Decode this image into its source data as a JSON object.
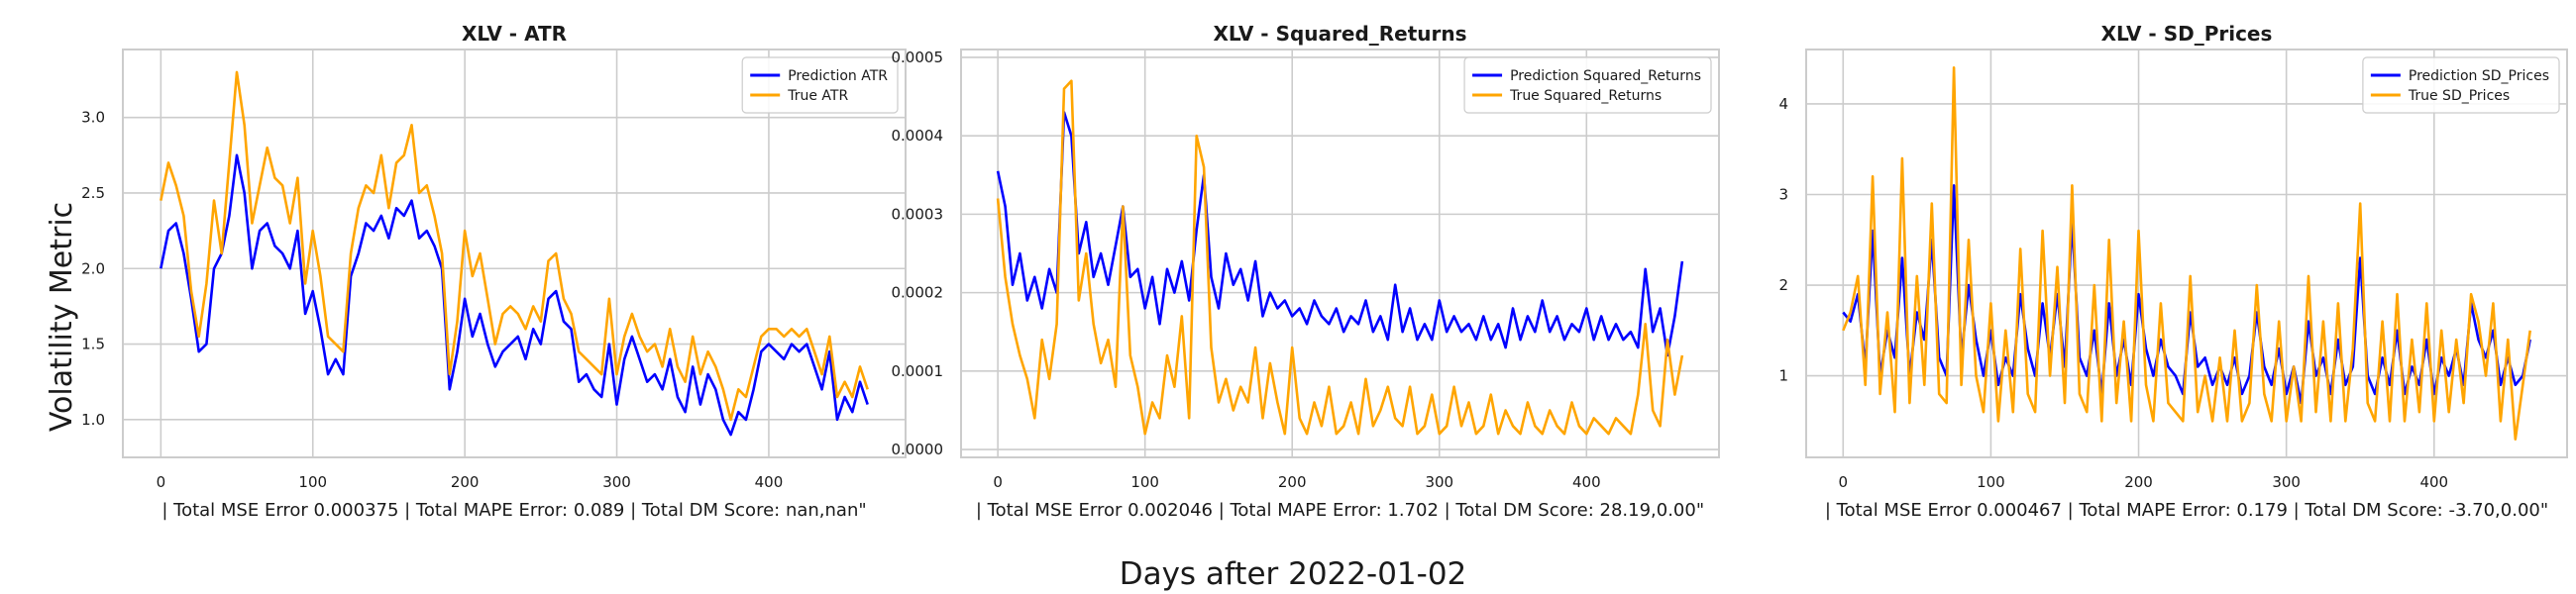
{
  "figure": {
    "ylabel": "Volatility Metric",
    "xlabel": "Days after 2022-01-02"
  },
  "colors": {
    "prediction": "#0000ff",
    "true": "#ffa500",
    "grid": "#cccccc",
    "frame": "#cccccc"
  },
  "chart_data": [
    {
      "type": "line",
      "title": "XLV - ATR",
      "caption": "| Total MSE Error 0.000375 | Total MAPE Error: 0.089 | Total DM Score: nan,nan\"",
      "xlim": [
        -25,
        490
      ],
      "ylim": [
        0.75,
        3.45
      ],
      "xticks": [
        0,
        100,
        200,
        300,
        400
      ],
      "yticks": [
        1.0,
        1.5,
        2.0,
        2.5,
        3.0
      ],
      "ytick_labels": [
        "1.0",
        "1.5",
        "2.0",
        "2.5",
        "3.0"
      ],
      "grid": true,
      "legend_position": "top-right",
      "x": [
        0,
        5,
        10,
        15,
        20,
        25,
        30,
        35,
        40,
        45,
        50,
        55,
        60,
        65,
        70,
        75,
        80,
        85,
        90,
        95,
        100,
        105,
        110,
        115,
        120,
        125,
        130,
        135,
        140,
        145,
        150,
        155,
        160,
        165,
        170,
        175,
        180,
        185,
        190,
        195,
        200,
        205,
        210,
        215,
        220,
        225,
        230,
        235,
        240,
        245,
        250,
        255,
        260,
        265,
        270,
        275,
        280,
        285,
        290,
        295,
        300,
        305,
        310,
        315,
        320,
        325,
        330,
        335,
        340,
        345,
        350,
        355,
        360,
        365,
        370,
        375,
        380,
        385,
        390,
        395,
        400,
        405,
        410,
        415,
        420,
        425,
        430,
        435,
        440,
        445,
        450,
        455,
        460,
        465
      ],
      "series": [
        {
          "name": "Prediction ATR",
          "values": [
            2.0,
            2.25,
            2.3,
            2.1,
            1.8,
            1.45,
            1.5,
            2.0,
            2.1,
            2.35,
            2.75,
            2.5,
            2.0,
            2.25,
            2.3,
            2.15,
            2.1,
            2.0,
            2.25,
            1.7,
            1.85,
            1.6,
            1.3,
            1.4,
            1.3,
            1.95,
            2.1,
            2.3,
            2.25,
            2.35,
            2.2,
            2.4,
            2.35,
            2.45,
            2.2,
            2.25,
            2.15,
            2.0,
            1.2,
            1.45,
            1.8,
            1.55,
            1.7,
            1.5,
            1.35,
            1.45,
            1.5,
            1.55,
            1.4,
            1.6,
            1.5,
            1.8,
            1.85,
            1.65,
            1.6,
            1.25,
            1.3,
            1.2,
            1.15,
            1.5,
            1.1,
            1.4,
            1.55,
            1.4,
            1.25,
            1.3,
            1.2,
            1.4,
            1.15,
            1.05,
            1.35,
            1.1,
            1.3,
            1.2,
            1.0,
            0.9,
            1.05,
            1.0,
            1.2,
            1.45,
            1.5,
            1.45,
            1.4,
            1.5,
            1.45,
            1.5,
            1.35,
            1.2,
            1.45,
            1.0,
            1.15,
            1.05,
            1.25,
            1.1
          ]
        },
        {
          "name": "True ATR",
          "values": [
            2.45,
            2.7,
            2.55,
            2.35,
            1.85,
            1.55,
            1.9,
            2.45,
            2.1,
            2.7,
            3.3,
            2.95,
            2.3,
            2.55,
            2.8,
            2.6,
            2.55,
            2.3,
            2.6,
            1.9,
            2.25,
            1.95,
            1.55,
            1.5,
            1.45,
            2.1,
            2.4,
            2.55,
            2.5,
            2.75,
            2.4,
            2.7,
            2.75,
            2.95,
            2.5,
            2.55,
            2.35,
            2.1,
            1.3,
            1.65,
            2.25,
            1.95,
            2.1,
            1.8,
            1.5,
            1.7,
            1.75,
            1.7,
            1.6,
            1.75,
            1.65,
            2.05,
            2.1,
            1.8,
            1.7,
            1.45,
            1.4,
            1.35,
            1.3,
            1.8,
            1.3,
            1.55,
            1.7,
            1.55,
            1.45,
            1.5,
            1.35,
            1.6,
            1.35,
            1.25,
            1.55,
            1.3,
            1.45,
            1.35,
            1.2,
            1.0,
            1.2,
            1.15,
            1.35,
            1.55,
            1.6,
            1.6,
            1.55,
            1.6,
            1.55,
            1.6,
            1.45,
            1.3,
            1.55,
            1.15,
            1.25,
            1.15,
            1.35,
            1.2
          ]
        }
      ]
    },
    {
      "type": "line",
      "title": "XLV - Squared_Returns",
      "caption": "| Total MSE Error 0.002046 | Total MAPE Error: 1.702 | Total DM Score: 28.19,0.00\"",
      "xlim": [
        -25,
        490
      ],
      "ylim": [
        -1e-05,
        0.00051
      ],
      "xticks": [
        0,
        100,
        200,
        300,
        400
      ],
      "yticks": [
        0,
        0.0001,
        0.0002,
        0.0003,
        0.0004,
        0.0005
      ],
      "ytick_labels": [
        "0.0000",
        "0.0001",
        "0.0002",
        "0.0003",
        "0.0004",
        "0.0005"
      ],
      "grid": true,
      "legend_position": "top-right",
      "x": [
        0,
        5,
        10,
        15,
        20,
        25,
        30,
        35,
        40,
        45,
        50,
        55,
        60,
        65,
        70,
        75,
        80,
        85,
        90,
        95,
        100,
        105,
        110,
        115,
        120,
        125,
        130,
        135,
        140,
        145,
        150,
        155,
        160,
        165,
        170,
        175,
        180,
        185,
        190,
        195,
        200,
        205,
        210,
        215,
        220,
        225,
        230,
        235,
        240,
        245,
        250,
        255,
        260,
        265,
        270,
        275,
        280,
        285,
        290,
        295,
        300,
        305,
        310,
        315,
        320,
        325,
        330,
        335,
        340,
        345,
        350,
        355,
        360,
        365,
        370,
        375,
        380,
        385,
        390,
        395,
        400,
        405,
        410,
        415,
        420,
        425,
        430,
        435,
        440,
        445,
        450,
        455,
        460,
        465
      ],
      "series": [
        {
          "name": "Prediction Squared_Returns",
          "values": [
            0.000355,
            0.00031,
            0.00021,
            0.00025,
            0.00019,
            0.00022,
            0.00018,
            0.00023,
            0.0002,
            0.00043,
            0.0004,
            0.00025,
            0.00029,
            0.00022,
            0.00025,
            0.00021,
            0.00026,
            0.00031,
            0.00022,
            0.00023,
            0.00018,
            0.00022,
            0.00016,
            0.00023,
            0.0002,
            0.00024,
            0.00019,
            0.00028,
            0.00035,
            0.00022,
            0.00018,
            0.00025,
            0.00021,
            0.00023,
            0.00019,
            0.00024,
            0.00017,
            0.0002,
            0.00018,
            0.00019,
            0.00017,
            0.00018,
            0.00016,
            0.00019,
            0.00017,
            0.00016,
            0.00018,
            0.00015,
            0.00017,
            0.00016,
            0.00019,
            0.00015,
            0.00017,
            0.00014,
            0.00021,
            0.00015,
            0.00018,
            0.00014,
            0.00016,
            0.00014,
            0.00019,
            0.00015,
            0.00017,
            0.00015,
            0.00016,
            0.00014,
            0.00017,
            0.00014,
            0.00016,
            0.00013,
            0.00018,
            0.00014,
            0.00017,
            0.00015,
            0.00019,
            0.00015,
            0.00017,
            0.00014,
            0.00016,
            0.00015,
            0.00018,
            0.00014,
            0.00017,
            0.00014,
            0.00016,
            0.00014,
            0.00015,
            0.00013,
            0.00023,
            0.00015,
            0.00018,
            0.00012,
            0.00017,
            0.00024
          ]
        },
        {
          "name": "True Squared_Returns",
          "values": [
            0.00032,
            0.00022,
            0.00016,
            0.00012,
            9e-05,
            4e-05,
            0.00014,
            9e-05,
            0.00016,
            0.00046,
            0.00047,
            0.00019,
            0.00025,
            0.00016,
            0.00011,
            0.00014,
            8e-05,
            0.00031,
            0.00012,
            8e-05,
            2e-05,
            6e-05,
            4e-05,
            0.00012,
            8e-05,
            0.00017,
            4e-05,
            0.0004,
            0.00036,
            0.00013,
            6e-05,
            9e-05,
            5e-05,
            8e-05,
            6e-05,
            0.00013,
            4e-05,
            0.00011,
            6e-05,
            2e-05,
            0.00013,
            4e-05,
            2e-05,
            6e-05,
            3e-05,
            8e-05,
            2e-05,
            3e-05,
            6e-05,
            2e-05,
            9e-05,
            3e-05,
            5e-05,
            8e-05,
            4e-05,
            3e-05,
            8e-05,
            2e-05,
            3e-05,
            7e-05,
            2e-05,
            3e-05,
            8e-05,
            3e-05,
            6e-05,
            2e-05,
            3e-05,
            7e-05,
            2e-05,
            5e-05,
            3e-05,
            2e-05,
            6e-05,
            3e-05,
            2e-05,
            5e-05,
            3e-05,
            2e-05,
            6e-05,
            3e-05,
            2e-05,
            4e-05,
            3e-05,
            2e-05,
            4e-05,
            3e-05,
            2e-05,
            7e-05,
            0.00016,
            5e-05,
            3e-05,
            0.00014,
            7e-05,
            0.00012
          ]
        }
      ]
    },
    {
      "type": "line",
      "title": "XLV - SD_Prices",
      "caption": "| Total MSE Error 0.000467 | Total MAPE Error: 0.179 | Total DM Score: -3.70,0.00\"",
      "xlim": [
        -25,
        490
      ],
      "ylim": [
        0.1,
        4.6
      ],
      "xticks": [
        0,
        100,
        200,
        300,
        400
      ],
      "yticks": [
        1,
        2,
        3,
        4
      ],
      "ytick_labels": [
        "1",
        "2",
        "3",
        "4"
      ],
      "grid": true,
      "legend_position": "top-right",
      "x": [
        0,
        5,
        10,
        15,
        20,
        25,
        30,
        35,
        40,
        45,
        50,
        55,
        60,
        65,
        70,
        75,
        80,
        85,
        90,
        95,
        100,
        105,
        110,
        115,
        120,
        125,
        130,
        135,
        140,
        145,
        150,
        155,
        160,
        165,
        170,
        175,
        180,
        185,
        190,
        195,
        200,
        205,
        210,
        215,
        220,
        225,
        230,
        235,
        240,
        245,
        250,
        255,
        260,
        265,
        270,
        275,
        280,
        285,
        290,
        295,
        300,
        305,
        310,
        315,
        320,
        325,
        330,
        335,
        340,
        345,
        350,
        355,
        360,
        365,
        370,
        375,
        380,
        385,
        390,
        395,
        400,
        405,
        410,
        415,
        420,
        425,
        430,
        435,
        440,
        445,
        450,
        455,
        460,
        465
      ],
      "series": [
        {
          "name": "Prediction SD_Prices",
          "values": [
            1.7,
            1.6,
            1.9,
            1.1,
            2.6,
            1.0,
            1.5,
            1.2,
            2.3,
            1.0,
            1.7,
            1.4,
            2.5,
            1.2,
            1.0,
            3.1,
            1.2,
            2.0,
            1.4,
            1.0,
            1.5,
            0.9,
            1.2,
            1.0,
            1.9,
            1.3,
            1.0,
            1.8,
            1.2,
            1.9,
            1.1,
            2.7,
            1.2,
            1.0,
            1.5,
            0.8,
            1.8,
            1.0,
            1.4,
            0.9,
            1.9,
            1.3,
            1.0,
            1.4,
            1.1,
            1.0,
            0.8,
            1.7,
            1.1,
            1.2,
            0.9,
            1.1,
            0.9,
            1.2,
            0.8,
            1.0,
            1.7,
            1.1,
            0.9,
            1.3,
            0.8,
            1.1,
            0.7,
            1.6,
            1.0,
            1.2,
            0.8,
            1.4,
            0.9,
            1.1,
            2.3,
            1.0,
            0.8,
            1.2,
            0.9,
            1.5,
            0.8,
            1.1,
            0.9,
            1.4,
            0.8,
            1.2,
            1.0,
            1.3,
            0.9,
            1.8,
            1.4,
            1.2,
            1.5,
            0.9,
            1.2,
            0.9,
            1.0,
            1.4
          ]
        },
        {
          "name": "True SD_Prices",
          "values": [
            1.5,
            1.7,
            2.1,
            0.9,
            3.2,
            0.8,
            1.7,
            0.6,
            3.4,
            0.7,
            2.1,
            0.9,
            2.9,
            0.8,
            0.7,
            4.4,
            0.9,
            2.5,
            1.0,
            0.6,
            1.8,
            0.5,
            1.5,
            0.6,
            2.4,
            0.8,
            0.6,
            2.6,
            1.0,
            2.2,
            0.7,
            3.1,
            0.8,
            0.6,
            2.0,
            0.5,
            2.5,
            0.7,
            1.6,
            0.5,
            2.6,
            0.9,
            0.5,
            1.8,
            0.7,
            0.6,
            0.5,
            2.1,
            0.6,
            1.0,
            0.5,
            1.2,
            0.5,
            1.5,
            0.5,
            0.7,
            2.0,
            0.8,
            0.5,
            1.6,
            0.5,
            1.1,
            0.5,
            2.1,
            0.6,
            1.6,
            0.5,
            1.8,
            0.5,
            1.3,
            2.9,
            0.7,
            0.5,
            1.6,
            0.5,
            1.9,
            0.5,
            1.4,
            0.6,
            1.8,
            0.5,
            1.5,
            0.6,
            1.4,
            0.7,
            1.9,
            1.6,
            1.0,
            1.8,
            0.5,
            1.4,
            0.3,
            0.9,
            1.5
          ]
        }
      ]
    }
  ]
}
